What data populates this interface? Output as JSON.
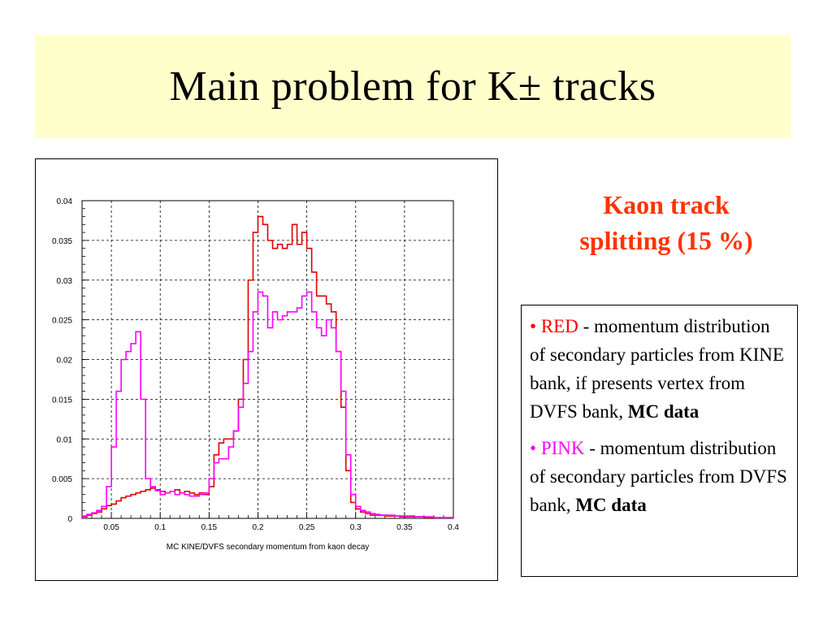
{
  "slide": {
    "title": "Main problem for K± tracks",
    "subtitle_line1": "Kaon track",
    "subtitle_line2": "splitting (15 %)"
  },
  "legend": {
    "bullet": "•",
    "item1": {
      "colored": "RED",
      "text": " - momentum distribution of secondary particles from KINE bank, if presents vertex from DVFS bank, ",
      "bold": "MC data",
      "color": "#ff0000"
    },
    "item2": {
      "colored": "PINK",
      "text": " - momentum distribution of secondary particles from DVFS bank, ",
      "bold": "MC data",
      "color": "#ff00ff"
    }
  },
  "chart_data": {
    "type": "line",
    "style": "step",
    "xlabel": "MC KINE/DVFS secondary momentum from kaon decay",
    "ylabel": "",
    "xlim": [
      0.02,
      0.4
    ],
    "ylim": [
      0,
      0.04
    ],
    "x_ticks": [
      0.05,
      0.1,
      0.15,
      0.2,
      0.25,
      0.3,
      0.35,
      0.4
    ],
    "x_tick_labels": [
      "0.05",
      "0.1",
      "0.15",
      "0.2",
      "0.25",
      "0.3",
      "0.35",
      "0.4"
    ],
    "y_ticks": [
      0,
      0.005,
      0.01,
      0.015,
      0.02,
      0.025,
      0.03,
      0.035,
      0.04
    ],
    "y_tick_labels": [
      "0",
      "0.005",
      "0.01",
      "0.015",
      "0.02",
      "0.025",
      "0.03",
      "0.035",
      "0.04"
    ],
    "grid": true,
    "bin_edges_start": 0.02,
    "bin_width": 0.005,
    "series": [
      {
        "color": "#dd0000",
        "values": [
          0.0002,
          0.0004,
          0.0006,
          0.0008,
          0.0012,
          0.0016,
          0.0018,
          0.0022,
          0.0026,
          0.0028,
          0.003,
          0.0032,
          0.0034,
          0.0036,
          0.0038,
          0.0036,
          0.0034,
          0.0032,
          0.0034,
          0.0036,
          0.0032,
          0.0034,
          0.0032,
          0.003,
          0.0032,
          0.003,
          0.004,
          0.008,
          0.0095,
          0.01,
          0.01,
          0.011,
          0.015,
          0.02,
          0.03,
          0.036,
          0.038,
          0.037,
          0.035,
          0.034,
          0.0345,
          0.034,
          0.0345,
          0.037,
          0.0345,
          0.036,
          0.034,
          0.031,
          0.028,
          0.028,
          0.027,
          0.026,
          0.021,
          0.014,
          0.006,
          0.002,
          0.0012,
          0.0008,
          0.0006,
          0.0004,
          0.0004,
          0.0004,
          0.0003,
          0.0003,
          0.0003,
          0.0002,
          0.0002,
          0.0002,
          0.0002,
          0.0002,
          0.0001,
          0.0001,
          0.0001,
          0.0001,
          0.0001,
          0.0001
        ]
      },
      {
        "color": "#ff00ff",
        "values": [
          0.0003,
          0.0005,
          0.0007,
          0.001,
          0.0015,
          0.004,
          0.009,
          0.016,
          0.02,
          0.021,
          0.022,
          0.0235,
          0.015,
          0.005,
          0.004,
          0.0035,
          0.003,
          0.0032,
          0.0034,
          0.003,
          0.0032,
          0.003,
          0.0028,
          0.0028,
          0.003,
          0.0032,
          0.005,
          0.007,
          0.0075,
          0.0075,
          0.009,
          0.011,
          0.014,
          0.017,
          0.021,
          0.026,
          0.0285,
          0.028,
          0.024,
          0.026,
          0.025,
          0.0255,
          0.026,
          0.026,
          0.0265,
          0.028,
          0.0285,
          0.026,
          0.024,
          0.023,
          0.025,
          0.024,
          0.021,
          0.016,
          0.008,
          0.003,
          0.0015,
          0.001,
          0.0008,
          0.0006,
          0.0005,
          0.0004,
          0.0004,
          0.0004,
          0.0003,
          0.0003,
          0.0003,
          0.0003,
          0.0002,
          0.0002,
          0.0002,
          0.0002,
          0.0001,
          0.0001,
          0.0001,
          0.0001
        ]
      }
    ]
  }
}
